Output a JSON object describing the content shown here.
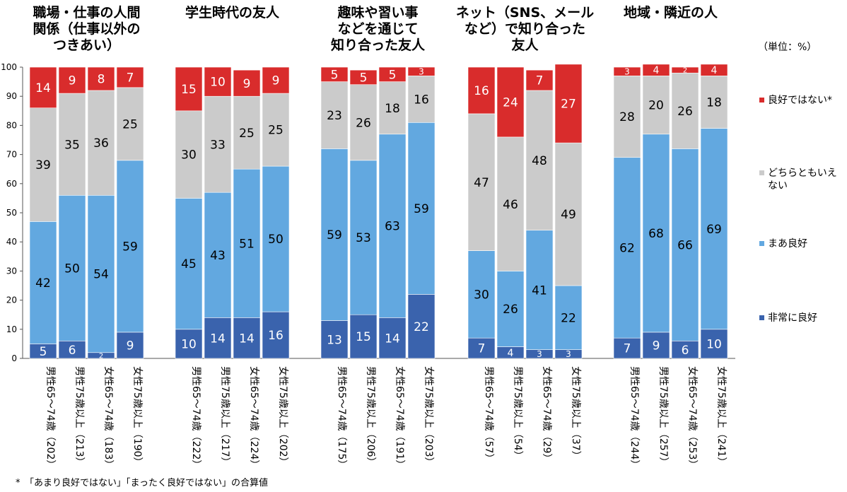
{
  "chart_data": {
    "type": "bar",
    "stacked": true,
    "unit_label": "（単位：%）",
    "ylim": [
      0,
      100
    ],
    "yticks": [
      0,
      10,
      20,
      30,
      40,
      50,
      60,
      70,
      80,
      90,
      100
    ],
    "series": [
      {
        "name": "非常に良好",
        "color": "#3a63ad"
      },
      {
        "name": "まあ良好",
        "color": "#62a8e0"
      },
      {
        "name": "どちらともいえない",
        "color": "#cbcbcb"
      },
      {
        "name": "良好ではない*",
        "color": "#d92c2c"
      }
    ],
    "legend_placement": "right",
    "legend_lines": [
      [
        "良好ではない*"
      ],
      [
        "どちらともいえ",
        "ない"
      ],
      [
        "まあ良好"
      ],
      [
        "非常に良好"
      ]
    ],
    "groups": [
      {
        "title_lines": [
          "職場・仕事の人間",
          "関係（仕事以外の",
          "つきあい）"
        ],
        "categories": [
          "男性65～74歳（202）",
          "男性75歳以上（213）",
          "女性65～74歳（183）",
          "女性75歳以上（190）"
        ],
        "values": [
          [
            5,
            42,
            39,
            14
          ],
          [
            6,
            50,
            35,
            9
          ],
          [
            2,
            54,
            36,
            8
          ],
          [
            9,
            59,
            25,
            7
          ]
        ]
      },
      {
        "title_lines": [
          "学生時代の友人"
        ],
        "categories": [
          "男性65～74歳（222）",
          "男性75歳以上（217）",
          "女性65～74歳（224）",
          "女性75歳以上（202）"
        ],
        "values": [
          [
            10,
            45,
            30,
            15
          ],
          [
            14,
            43,
            33,
            10
          ],
          [
            14,
            51,
            25,
            9
          ],
          [
            16,
            50,
            25,
            9
          ]
        ]
      },
      {
        "title_lines": [
          "趣味や習い事",
          "などを通じて",
          "知り合った友人"
        ],
        "categories": [
          "男性65～74歳（175）",
          "男性75歳以上（206）",
          "女性65～74歳（191）",
          "女性75歳以上（203）"
        ],
        "values": [
          [
            13,
            59,
            23,
            5
          ],
          [
            15,
            53,
            26,
            5
          ],
          [
            14,
            63,
            18,
            5
          ],
          [
            22,
            59,
            16,
            3
          ]
        ]
      },
      {
        "title_lines": [
          "ネット（SNS、メール",
          "など）で知り合った",
          "友人"
        ],
        "categories": [
          "男性65～74歳（57）",
          "男性75歳以上（54）",
          "女性65～74歳（29）",
          "女性75歳以上（37）"
        ],
        "values": [
          [
            7,
            30,
            47,
            16
          ],
          [
            4,
            26,
            46,
            24
          ],
          [
            3,
            41,
            48,
            7
          ],
          [
            3,
            22,
            49,
            27
          ]
        ]
      },
      {
        "title_lines": [
          "地域・隣近の人"
        ],
        "categories": [
          "男性65～74歳（244）",
          "男性75歳以上（257）",
          "女性65～74歳（253）",
          "女性75歳以上（241）"
        ],
        "values": [
          [
            7,
            62,
            28,
            3
          ],
          [
            9,
            68,
            20,
            4
          ],
          [
            6,
            66,
            26,
            2
          ],
          [
            10,
            69,
            18,
            4
          ]
        ]
      }
    ]
  },
  "footnote": "*　「あまり良好ではない」「まったく良好ではない」の合算値"
}
